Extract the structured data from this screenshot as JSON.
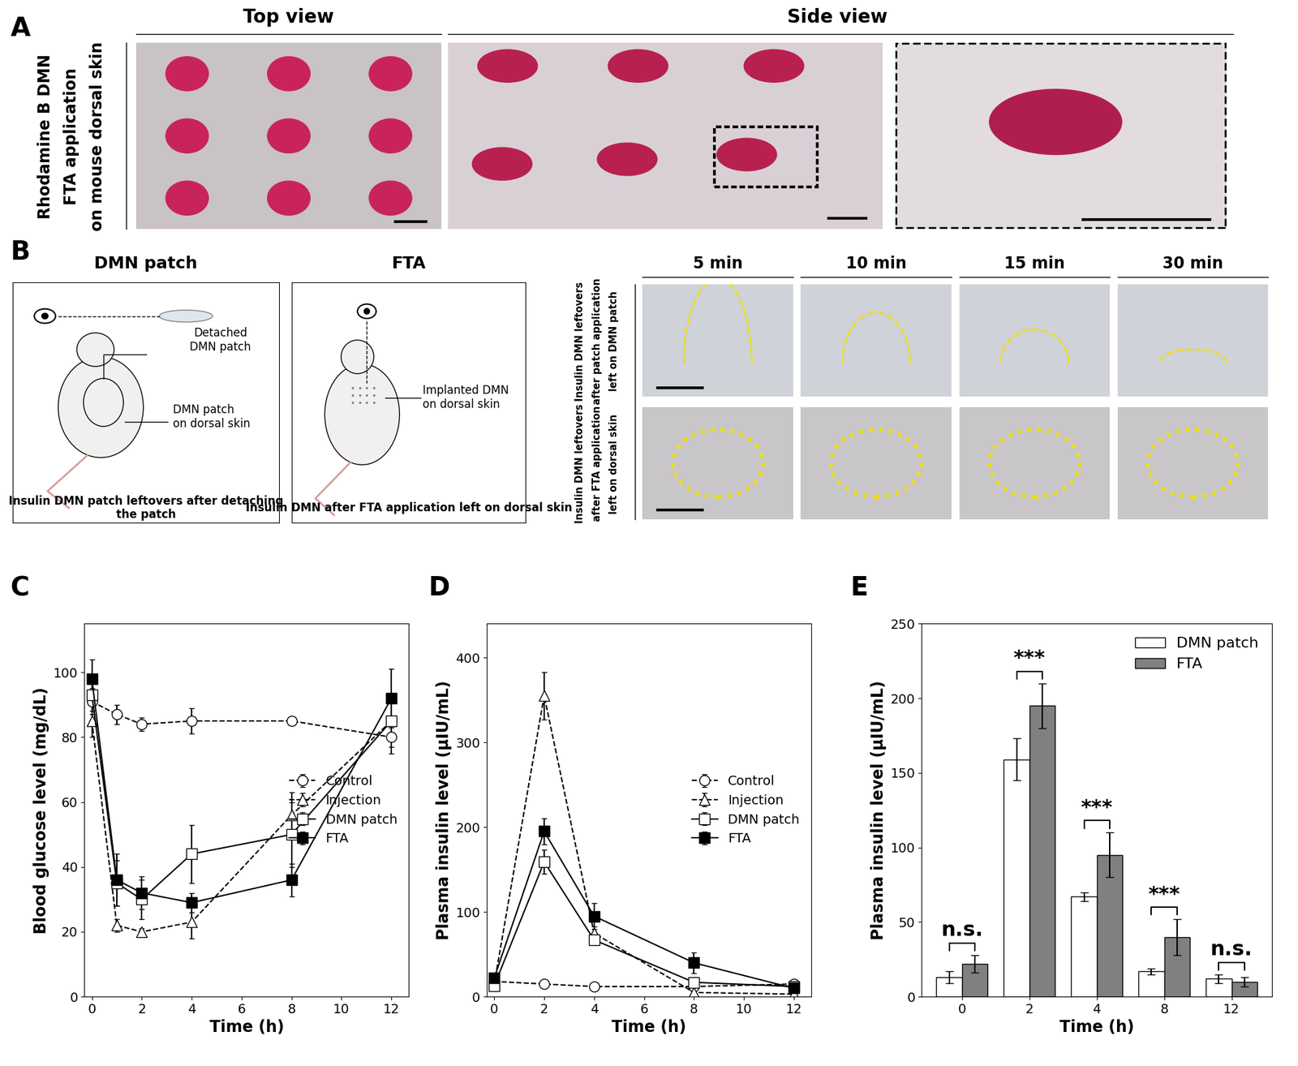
{
  "panels": {
    "A": {
      "label": "A",
      "top_title": "Top view",
      "side_title": "Side view",
      "row_label_lines": [
        "Rhodamine B DMN",
        "FTA application",
        "on mouse dorsal skin"
      ]
    },
    "B": {
      "label": "B",
      "box1": {
        "title": "DMN patch",
        "detached": "Detached\nDMN patch",
        "patch": "DMN patch\non dorsal skin",
        "caption": "Insulin DMN patch leftovers after detaching the patch"
      },
      "box2": {
        "title": "FTA",
        "implanted": "Implanted DMN\non dorsal skin",
        "caption": "Insulin DMN after FTA application left on dorsal skin"
      },
      "times": [
        "5 min",
        "10 min",
        "15 min",
        "30 min"
      ],
      "row1_lines": [
        "Insulin DMN leftovers",
        "after patch application",
        "left on DMN patch"
      ],
      "row2_lines": [
        "Insulin DMN leftovers",
        "after FTA application",
        "left on dorsal skin"
      ]
    }
  },
  "chart_data": [
    {
      "type": "line",
      "label": "C",
      "x_label": "Time (h)",
      "y_label": "Blood glucose level (mg/dL)",
      "xlim": [
        -0.3,
        12.7
      ],
      "xticks": [
        0,
        2,
        4,
        6,
        8,
        10,
        12
      ],
      "ylim": [
        0,
        115
      ],
      "yticks": [
        0,
        20,
        40,
        60,
        80,
        100
      ],
      "legend": "center right",
      "x": [
        0,
        1,
        2,
        4,
        8,
        12
      ],
      "series": [
        {
          "name": "Control",
          "marker": "circle",
          "color": "white",
          "line_style": "dashed",
          "values": [
            91,
            87,
            84,
            85,
            85,
            80
          ],
          "errors": [
            4,
            3,
            2,
            4,
            1,
            5
          ]
        },
        {
          "name": "Injection",
          "marker": "triangle",
          "color": "white",
          "line_style": "dashed",
          "values": [
            85,
            22,
            20,
            23,
            56,
            85
          ],
          "errors": [
            5,
            2,
            1,
            5,
            7,
            6
          ]
        },
        {
          "name": "DMN patch",
          "marker": "square",
          "color": "white",
          "line_style": "solid",
          "values": [
            93,
            35,
            30,
            44,
            50,
            85
          ],
          "errors": [
            5,
            7,
            6,
            9,
            10,
            8
          ]
        },
        {
          "name": "FTA",
          "marker": "square",
          "color": "black",
          "line_style": "solid",
          "values": [
            98,
            36,
            32,
            29,
            36,
            92
          ],
          "errors": [
            6,
            8,
            5,
            3,
            5,
            9
          ]
        }
      ]
    },
    {
      "type": "line",
      "label": "D",
      "x_label": "Time (h)",
      "y_label": "Plasma insulin level (μIU/mL)",
      "xlim": [
        -0.3,
        12.7
      ],
      "xticks": [
        0,
        2,
        4,
        6,
        8,
        10,
        12
      ],
      "ylim": [
        0,
        440
      ],
      "yticks": [
        0,
        100,
        200,
        300,
        400
      ],
      "legend": "center right",
      "x": [
        0,
        2,
        4,
        8,
        12
      ],
      "series": [
        {
          "name": "Control",
          "marker": "circle",
          "color": "white",
          "line_style": "dashed",
          "values": [
            18,
            15,
            12,
            12,
            15
          ],
          "errors": [
            3,
            4,
            3,
            2,
            3
          ]
        },
        {
          "name": "Injection",
          "marker": "triangle",
          "color": "white",
          "line_style": "dashed",
          "values": [
            15,
            355,
            75,
            5,
            3
          ],
          "errors": [
            5,
            28,
            8,
            3,
            2
          ]
        },
        {
          "name": "DMN patch",
          "marker": "square",
          "color": "white",
          "line_style": "solid",
          "values": [
            13,
            159,
            67,
            17,
            12
          ],
          "errors": [
            4,
            14,
            3,
            2,
            3
          ]
        },
        {
          "name": "FTA",
          "marker": "square",
          "color": "black",
          "line_style": "solid",
          "values": [
            22,
            195,
            95,
            40,
            10
          ],
          "errors": [
            6,
            15,
            15,
            12,
            3
          ]
        }
      ]
    },
    {
      "type": "bar",
      "label": "E",
      "x_label": "Time (h)",
      "y_label": "Plasma insulin level (μIU/mL)",
      "categories": [
        "0",
        "2",
        "4",
        "8",
        "12"
      ],
      "ylim": [
        0,
        250
      ],
      "yticks": [
        0,
        50,
        100,
        150,
        200,
        250
      ],
      "legend": "upper right",
      "annotations": [
        "n.s.",
        "***",
        "***",
        "***",
        "n.s."
      ],
      "series": [
        {
          "name": "DMN patch",
          "color": "#ffffff",
          "values": [
            13,
            159,
            67,
            17,
            12
          ],
          "errors": [
            4,
            14,
            3,
            2,
            3
          ]
        },
        {
          "name": "FTA",
          "color": "#808080",
          "values": [
            22,
            195,
            95,
            40,
            10
          ],
          "errors": [
            6,
            15,
            15,
            12,
            3
          ]
        }
      ]
    }
  ]
}
